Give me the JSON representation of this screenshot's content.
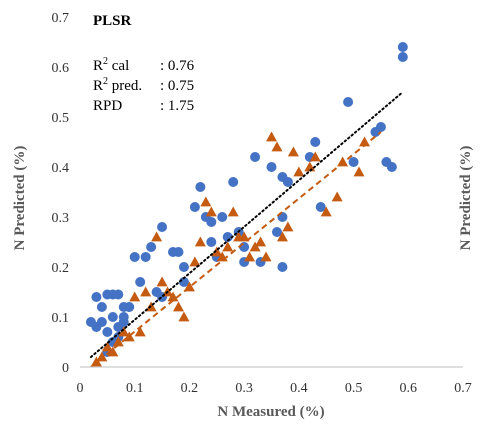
{
  "chart_data": {
    "type": "scatter",
    "title": "PLSR",
    "xlabel": "N Measured (%)",
    "ylabel": "N Predicted (%)",
    "ylabel_right": "N Predicted (%)",
    "xlim": [
      0,
      0.7
    ],
    "ylim": [
      0,
      0.7
    ],
    "x_ticks": [
      "0",
      "0.1",
      "0.2",
      "0.3",
      "0.4",
      "0.5",
      "0.6",
      "0.7"
    ],
    "y_ticks": [
      "0",
      "0.1",
      "0.2",
      "0.3",
      "0.4",
      "0.5",
      "0.6",
      "0.7"
    ],
    "grid": false,
    "stats": [
      {
        "label": "R",
        "sup": "2",
        "rest": " cal",
        "value": ": 0.76"
      },
      {
        "label": "R",
        "sup": "2",
        "rest": " pred.",
        "value": ": 0.75"
      },
      {
        "label": "RPD",
        "sup": "",
        "rest": "",
        "value": ": 1.75"
      }
    ],
    "series": [
      {
        "marker": "circle",
        "color": "#4472C4",
        "points": [
          [
            0.02,
            0.09
          ],
          [
            0.03,
            0.14
          ],
          [
            0.03,
            0.08
          ],
          [
            0.04,
            0.09
          ],
          [
            0.04,
            0.12
          ],
          [
            0.05,
            0.145
          ],
          [
            0.05,
            0.07
          ],
          [
            0.06,
            0.145
          ],
          [
            0.06,
            0.1
          ],
          [
            0.07,
            0.145
          ],
          [
            0.07,
            0.08
          ],
          [
            0.08,
            0.12
          ],
          [
            0.08,
            0.1
          ],
          [
            0.09,
            0.12
          ],
          [
            0.05,
            0.03
          ],
          [
            0.06,
            0.05
          ],
          [
            0.07,
            0.06
          ],
          [
            0.08,
            0.09
          ],
          [
            0.1,
            0.22
          ],
          [
            0.11,
            0.17
          ],
          [
            0.12,
            0.22
          ],
          [
            0.13,
            0.24
          ],
          [
            0.14,
            0.15
          ],
          [
            0.15,
            0.14
          ],
          [
            0.15,
            0.28
          ],
          [
            0.17,
            0.23
          ],
          [
            0.18,
            0.23
          ],
          [
            0.19,
            0.2
          ],
          [
            0.19,
            0.17
          ],
          [
            0.21,
            0.32
          ],
          [
            0.22,
            0.36
          ],
          [
            0.23,
            0.3
          ],
          [
            0.24,
            0.29
          ],
          [
            0.24,
            0.25
          ],
          [
            0.25,
            0.22
          ],
          [
            0.26,
            0.3
          ],
          [
            0.27,
            0.26
          ],
          [
            0.28,
            0.37
          ],
          [
            0.29,
            0.27
          ],
          [
            0.3,
            0.24
          ],
          [
            0.3,
            0.21
          ],
          [
            0.32,
            0.42
          ],
          [
            0.33,
            0.21
          ],
          [
            0.35,
            0.4
          ],
          [
            0.36,
            0.27
          ],
          [
            0.37,
            0.2
          ],
          [
            0.37,
            0.38
          ],
          [
            0.37,
            0.3
          ],
          [
            0.38,
            0.37
          ],
          [
            0.42,
            0.42
          ],
          [
            0.43,
            0.45
          ],
          [
            0.44,
            0.32
          ],
          [
            0.49,
            0.53
          ],
          [
            0.5,
            0.41
          ],
          [
            0.54,
            0.47
          ],
          [
            0.55,
            0.48
          ],
          [
            0.56,
            0.41
          ],
          [
            0.57,
            0.4
          ],
          [
            0.59,
            0.64
          ],
          [
            0.59,
            0.62
          ]
        ]
      },
      {
        "marker": "triangle",
        "color": "#C55A11",
        "points": [
          [
            0.03,
            0.01
          ],
          [
            0.04,
            0.02
          ],
          [
            0.05,
            0.04
          ],
          [
            0.06,
            0.03
          ],
          [
            0.07,
            0.05
          ],
          [
            0.08,
            0.07
          ],
          [
            0.09,
            0.06
          ],
          [
            0.1,
            0.14
          ],
          [
            0.11,
            0.07
          ],
          [
            0.12,
            0.15
          ],
          [
            0.13,
            0.12
          ],
          [
            0.14,
            0.26
          ],
          [
            0.15,
            0.17
          ],
          [
            0.16,
            0.15
          ],
          [
            0.17,
            0.14
          ],
          [
            0.18,
            0.12
          ],
          [
            0.19,
            0.1
          ],
          [
            0.2,
            0.16
          ],
          [
            0.21,
            0.21
          ],
          [
            0.22,
            0.25
          ],
          [
            0.23,
            0.33
          ],
          [
            0.24,
            0.31
          ],
          [
            0.25,
            0.23
          ],
          [
            0.26,
            0.22
          ],
          [
            0.27,
            0.24
          ],
          [
            0.28,
            0.31
          ],
          [
            0.29,
            0.26
          ],
          [
            0.3,
            0.26
          ],
          [
            0.31,
            0.22
          ],
          [
            0.32,
            0.24
          ],
          [
            0.33,
            0.25
          ],
          [
            0.34,
            0.22
          ],
          [
            0.35,
            0.46
          ],
          [
            0.36,
            0.44
          ],
          [
            0.37,
            0.26
          ],
          [
            0.38,
            0.28
          ],
          [
            0.39,
            0.43
          ],
          [
            0.4,
            0.39
          ],
          [
            0.42,
            0.4
          ],
          [
            0.43,
            0.42
          ],
          [
            0.45,
            0.31
          ],
          [
            0.47,
            0.34
          ],
          [
            0.48,
            0.41
          ],
          [
            0.51,
            0.39
          ],
          [
            0.52,
            0.45
          ]
        ]
      }
    ],
    "trendlines": [
      {
        "style": "dotted",
        "color": "#000000",
        "x": [
          0.02,
          0.59
        ],
        "y": [
          0.02,
          0.55
        ]
      },
      {
        "style": "dashed",
        "color": "#C55A11",
        "x": [
          0.02,
          0.55
        ],
        "y": [
          0.0,
          0.47
        ]
      }
    ]
  }
}
